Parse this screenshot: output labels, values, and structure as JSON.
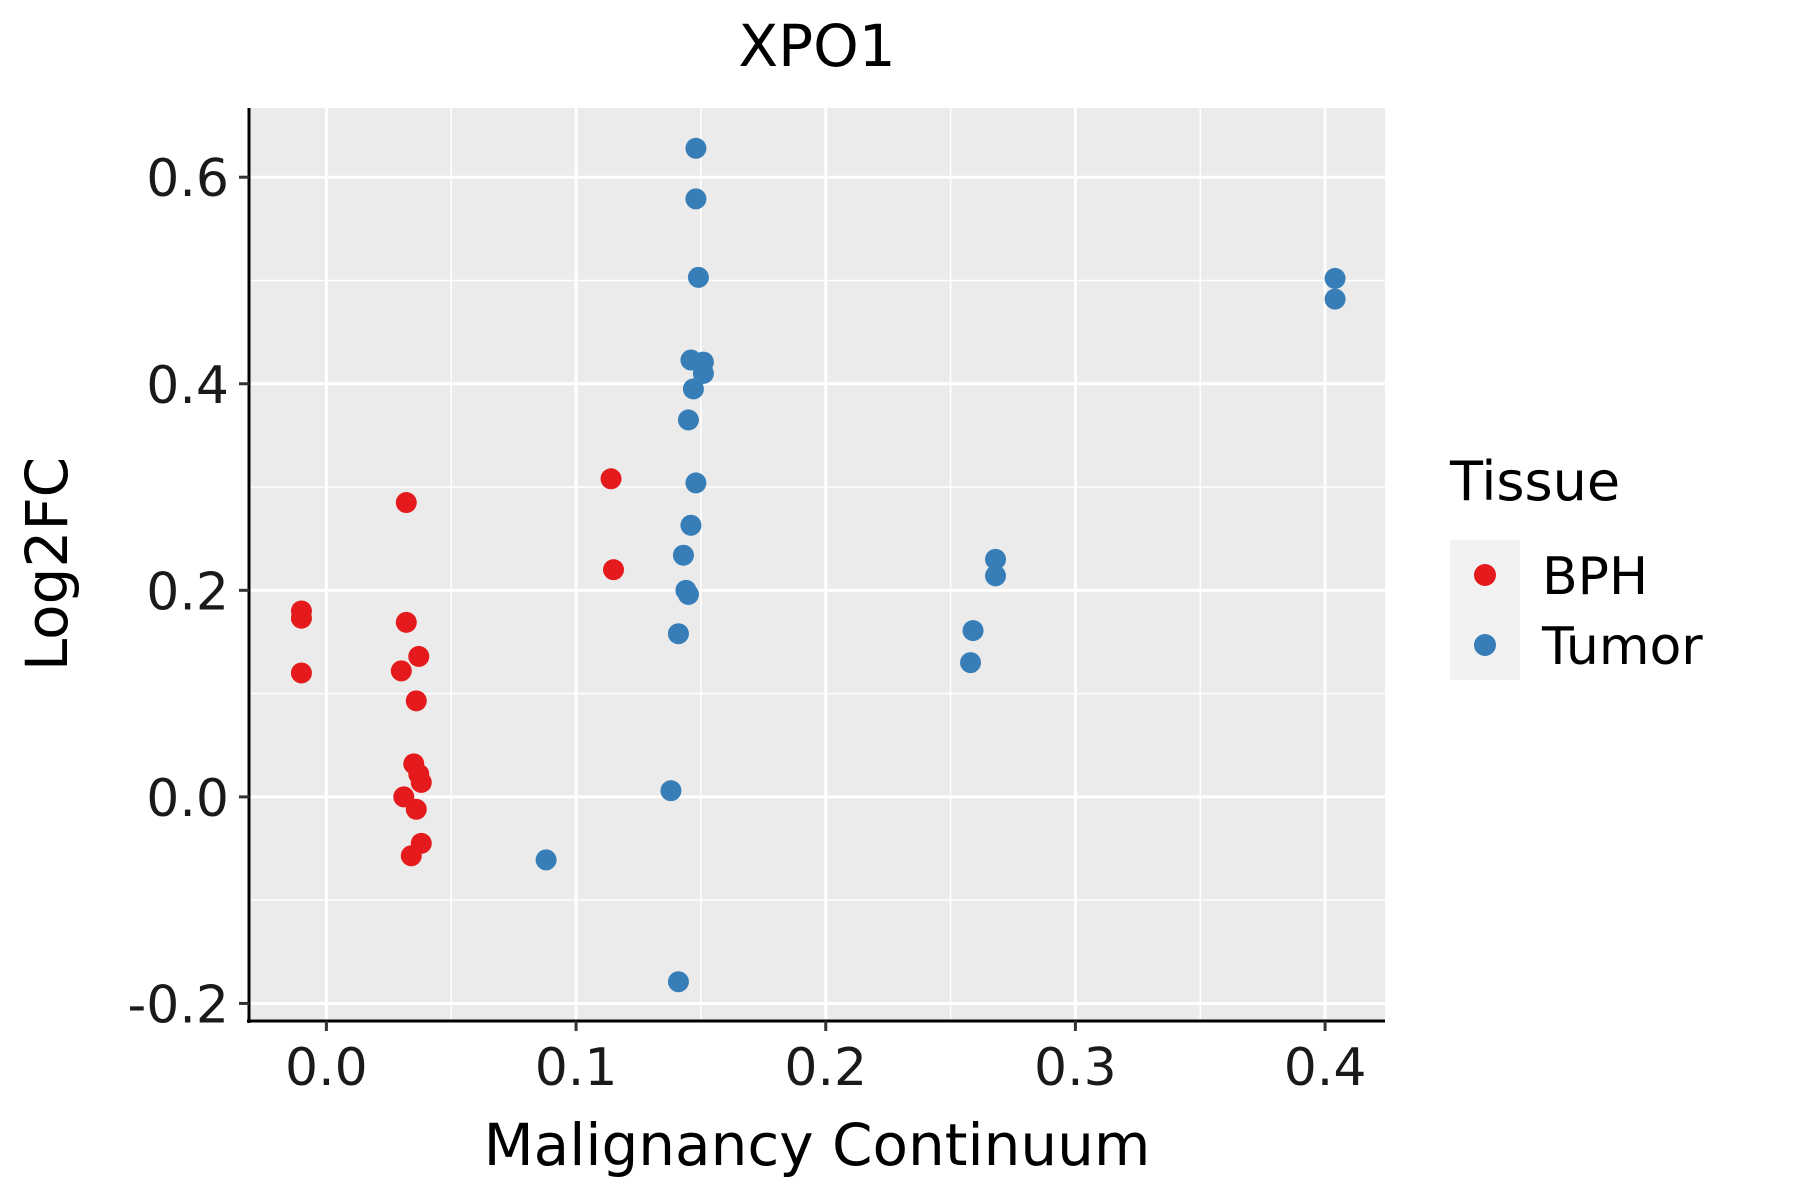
{
  "chart_data": {
    "type": "scatter",
    "title": "XPO1",
    "xlabel": "Malignancy Continuum",
    "ylabel": "Log2FC",
    "xlim": [
      -0.031,
      0.424
    ],
    "ylim": [
      -0.217,
      0.667
    ],
    "x_ticks": [
      0.0,
      0.1,
      0.2,
      0.3,
      0.4
    ],
    "x_tick_labels": [
      "0.0",
      "0.1",
      "0.2",
      "0.3",
      "0.4"
    ],
    "x_minor": [
      0.05,
      0.15,
      0.25,
      0.35
    ],
    "y_ticks": [
      -0.2,
      0.0,
      0.2,
      0.4,
      0.6
    ],
    "y_tick_labels": [
      "-0.2",
      "0.0",
      "0.2",
      "0.4",
      "0.6"
    ],
    "y_minor": [
      -0.1,
      0.1,
      0.3,
      0.5
    ],
    "grid": true,
    "legend": {
      "title": "Tissue",
      "position": "right"
    },
    "series": [
      {
        "name": "BPH",
        "color": "#E41A1C",
        "points": [
          [
            -0.01,
            0.18
          ],
          [
            -0.01,
            0.173
          ],
          [
            -0.01,
            0.12
          ],
          [
            0.032,
            0.285
          ],
          [
            0.032,
            0.169
          ],
          [
            0.03,
            0.122
          ],
          [
            0.037,
            0.136
          ],
          [
            0.036,
            0.093
          ],
          [
            0.035,
            0.032
          ],
          [
            0.037,
            0.022
          ],
          [
            0.038,
            0.014
          ],
          [
            0.031,
            0.0
          ],
          [
            0.036,
            -0.012
          ],
          [
            0.038,
            -0.045
          ],
          [
            0.034,
            -0.057
          ],
          [
            0.114,
            0.308
          ],
          [
            0.115,
            0.22
          ]
        ]
      },
      {
        "name": "Tumor",
        "color": "#377EB8",
        "points": [
          [
            0.148,
            0.628
          ],
          [
            0.148,
            0.579
          ],
          [
            0.149,
            0.503
          ],
          [
            0.146,
            0.423
          ],
          [
            0.151,
            0.421
          ],
          [
            0.151,
            0.41
          ],
          [
            0.147,
            0.395
          ],
          [
            0.145,
            0.365
          ],
          [
            0.148,
            0.304
          ],
          [
            0.146,
            0.263
          ],
          [
            0.143,
            0.234
          ],
          [
            0.144,
            0.2
          ],
          [
            0.145,
            0.196
          ],
          [
            0.141,
            0.158
          ],
          [
            0.138,
            0.006
          ],
          [
            0.088,
            -0.061
          ],
          [
            0.141,
            -0.179
          ],
          [
            0.268,
            0.23
          ],
          [
            0.268,
            0.214
          ],
          [
            0.259,
            0.161
          ],
          [
            0.258,
            0.13
          ],
          [
            0.404,
            0.502
          ],
          [
            0.404,
            0.482
          ]
        ]
      }
    ]
  }
}
